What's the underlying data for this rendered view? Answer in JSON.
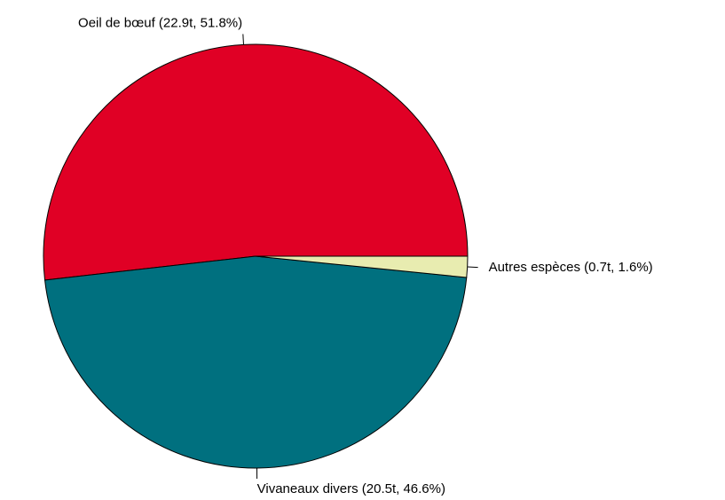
{
  "chart_data": {
    "type": "pie",
    "categories": [
      "Oeil de bœuf",
      "Vivaneaux divers",
      "Autres espèces"
    ],
    "values": [
      51.8,
      46.6,
      1.6
    ],
    "value_labels": [
      "Oeil de bœuf (22.9t, 51.8%)",
      "Vivaneaux divers (20.5t, 46.6%)",
      "Autres espèces (0.7t, 1.6%)"
    ],
    "colors": [
      "#e00025",
      "#00707f",
      "#e8ecb0"
    ]
  }
}
